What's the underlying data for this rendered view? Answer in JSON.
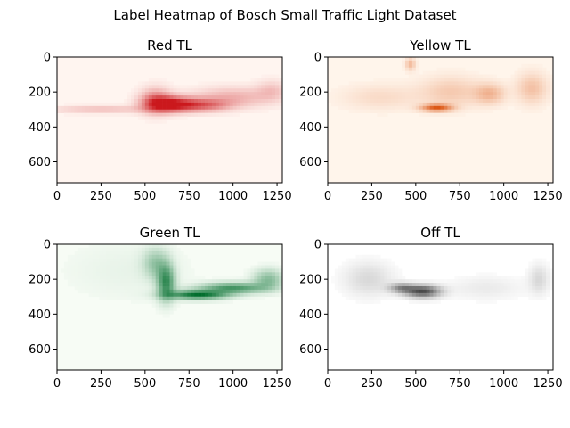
{
  "figure": {
    "title": "Label Heatmap of Bosch Small Traffic Light Dataset"
  },
  "chart_data": [
    {
      "type": "heatmap",
      "title": "Red TL",
      "colormap": "Reds",
      "colors": {
        "low": "#fff5f0",
        "high": "#cb181d"
      },
      "xlim": [
        0,
        1280
      ],
      "ylim": [
        720,
        0
      ],
      "xticks": [
        0,
        250,
        500,
        750,
        1000,
        1250
      ],
      "yticks": [
        0,
        200,
        400,
        600
      ],
      "hotspots": [
        {
          "x": 640,
          "y": 270,
          "sx": 90,
          "sy": 30,
          "v": 0.95
        },
        {
          "x": 820,
          "y": 275,
          "sx": 110,
          "sy": 25,
          "v": 0.6
        },
        {
          "x": 560,
          "y": 250,
          "sx": 60,
          "sy": 50,
          "v": 0.5
        },
        {
          "x": 1000,
          "y": 230,
          "sx": 160,
          "sy": 40,
          "v": 0.3
        },
        {
          "x": 250,
          "y": 300,
          "sx": 200,
          "sy": 15,
          "v": 0.25
        },
        {
          "x": 1220,
          "y": 190,
          "sx": 60,
          "sy": 40,
          "v": 0.2
        }
      ]
    },
    {
      "type": "heatmap",
      "title": "Yellow TL",
      "colormap": "Oranges",
      "colors": {
        "low": "#fff5eb",
        "high": "#d94801"
      },
      "xlim": [
        0,
        1280
      ],
      "ylim": [
        720,
        0
      ],
      "xticks": [
        0,
        250,
        500,
        750,
        1000,
        1250
      ],
      "yticks": [
        0,
        200,
        400,
        600
      ],
      "hotspots": [
        {
          "x": 620,
          "y": 290,
          "sx": 60,
          "sy": 15,
          "v": 0.85
        },
        {
          "x": 470,
          "y": 40,
          "sx": 20,
          "sy": 25,
          "v": 0.35
        },
        {
          "x": 920,
          "y": 210,
          "sx": 60,
          "sy": 40,
          "v": 0.35
        },
        {
          "x": 1160,
          "y": 180,
          "sx": 60,
          "sy": 60,
          "v": 0.3
        },
        {
          "x": 700,
          "y": 200,
          "sx": 120,
          "sy": 60,
          "v": 0.25
        },
        {
          "x": 300,
          "y": 230,
          "sx": 150,
          "sy": 50,
          "v": 0.15
        }
      ]
    },
    {
      "type": "heatmap",
      "title": "Green TL",
      "colormap": "Greens",
      "colors": {
        "low": "#f7fcf5",
        "high": "#006d2c"
      },
      "xlim": [
        0,
        1280
      ],
      "ylim": [
        720,
        0
      ],
      "xticks": [
        0,
        250,
        500,
        750,
        1000,
        1250
      ],
      "yticks": [
        0,
        200,
        400,
        600
      ],
      "hotspots": [
        {
          "x": 800,
          "y": 290,
          "sx": 120,
          "sy": 18,
          "v": 0.95
        },
        {
          "x": 1000,
          "y": 250,
          "sx": 130,
          "sy": 22,
          "v": 0.7
        },
        {
          "x": 620,
          "y": 220,
          "sx": 35,
          "sy": 70,
          "v": 0.75
        },
        {
          "x": 1200,
          "y": 200,
          "sx": 60,
          "sy": 40,
          "v": 0.45
        },
        {
          "x": 560,
          "y": 110,
          "sx": 50,
          "sy": 60,
          "v": 0.35
        },
        {
          "x": 400,
          "y": 150,
          "sx": 250,
          "sy": 120,
          "v": 0.06
        }
      ]
    },
    {
      "type": "heatmap",
      "title": "Off TL",
      "colormap": "Greys",
      "colors": {
        "low": "#ffffff",
        "high": "#000000"
      },
      "xlim": [
        0,
        1280
      ],
      "ylim": [
        720,
        0
      ],
      "xticks": [
        0,
        250,
        500,
        750,
        1000,
        1250
      ],
      "yticks": [
        0,
        200,
        400,
        600
      ],
      "hotspots": [
        {
          "x": 540,
          "y": 270,
          "sx": 70,
          "sy": 25,
          "v": 0.7
        },
        {
          "x": 420,
          "y": 250,
          "sx": 50,
          "sy": 20,
          "v": 0.4
        },
        {
          "x": 230,
          "y": 200,
          "sx": 100,
          "sy": 70,
          "v": 0.15
        },
        {
          "x": 1200,
          "y": 200,
          "sx": 40,
          "sy": 60,
          "v": 0.15
        },
        {
          "x": 900,
          "y": 250,
          "sx": 150,
          "sy": 50,
          "v": 0.08
        }
      ]
    }
  ]
}
